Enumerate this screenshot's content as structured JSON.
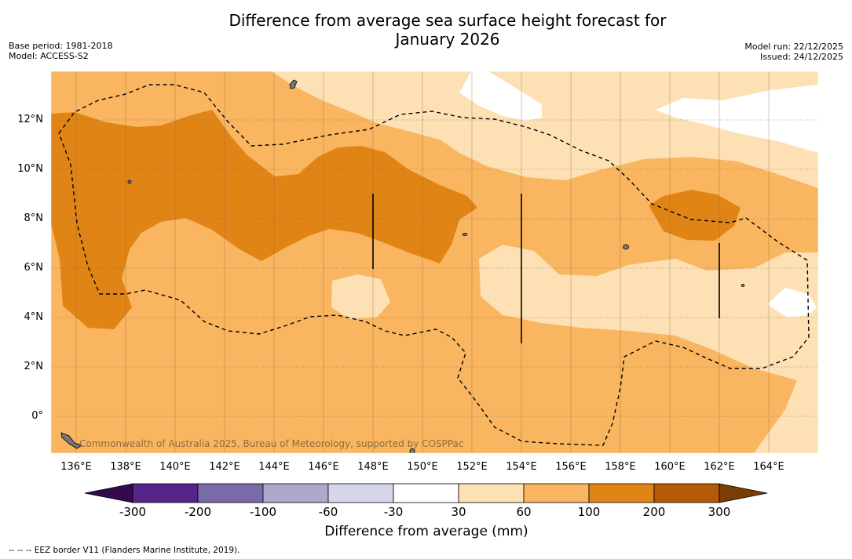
{
  "title_line1": "Difference from average sea surface height forecast for",
  "title_line2": "January 2026",
  "base_period": "Base period: 1981-2018",
  "model": "Model: ACCESS-S2",
  "model_run": "Model run: 22/12/2025",
  "issued": "Issued: 24/12/2025",
  "lat_labels": [
    "12°N",
    "10°N",
    "8°N",
    "6°N",
    "4°N",
    "2°N",
    "0°"
  ],
  "lon_labels": [
    "136°E",
    "138°E",
    "140°E",
    "142°E",
    "144°E",
    "146°E",
    "148°E",
    "150°E",
    "152°E",
    "154°E",
    "156°E",
    "158°E",
    "160°E",
    "162°E",
    "164°E"
  ],
  "copyright": "Commonwealth of Australia 2025, Bureau of Meteorology, supported by COSPPac",
  "colorbar": {
    "ticks": [
      "-300",
      "-200",
      "-100",
      "-60",
      "-30",
      "30",
      "60",
      "100",
      "200",
      "300"
    ],
    "colors": [
      "#55258a",
      "#7b6aa8",
      "#ada8cc",
      "#d6d6ea",
      "#ffffff",
      "#fde0b4",
      "#f9b55f",
      "#e08416",
      "#b35908"
    ],
    "under_color": "#340a4e",
    "over_color": "#7c3c06",
    "label": "Difference from average (mm)"
  },
  "footnote": "--  --  -- EEZ border V11 (Flanders Marine Institute, 2019).",
  "colors": {
    "band_30_60": "#fde0b4",
    "band_60_100": "#f9b55f",
    "band_100_200": "#e08416",
    "below_30": "#ffffff"
  }
}
